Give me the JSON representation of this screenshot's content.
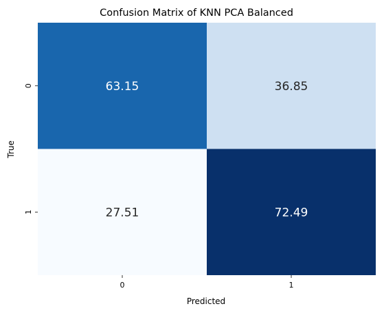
{
  "chart_data": {
    "type": "heatmap",
    "title": "Confusion Matrix of KNN PCA Balanced",
    "xlabel": "Predicted",
    "ylabel": "True",
    "x_categories": [
      "0",
      "1"
    ],
    "y_categories": [
      "0",
      "1"
    ],
    "values": [
      [
        63.15,
        36.85
      ],
      [
        27.51,
        72.49
      ]
    ],
    "value_labels": [
      [
        "63.15",
        "36.85"
      ],
      [
        "27.51",
        "72.49"
      ]
    ],
    "colormap": "Blues",
    "colorbar": false,
    "grid": false
  }
}
